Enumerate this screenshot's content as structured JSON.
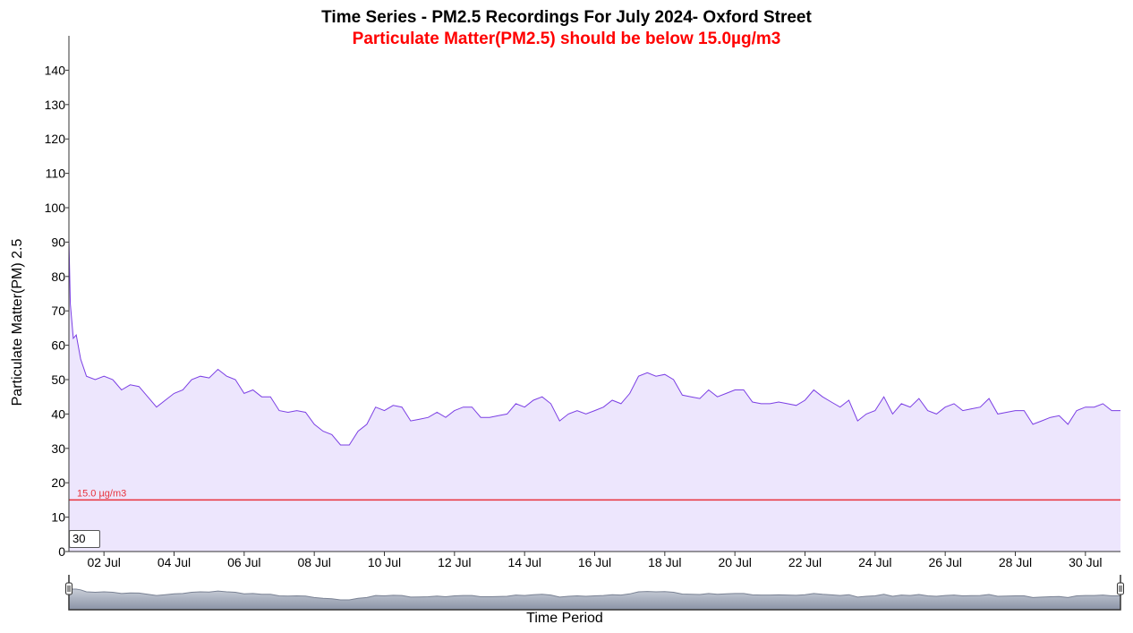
{
  "chart_data": {
    "type": "area",
    "title": "Time Series - PM2.5 Recordings For July 2024- Oxford Street",
    "subtitle": "Particulate Matter(PM2.5) should be below 15.0µg/m3",
    "xlabel": "Time Period",
    "ylabel": "Particulate Matter(PM) 2.5",
    "ylim": [
      0,
      150
    ],
    "yticks": [
      0,
      10,
      20,
      30,
      40,
      50,
      60,
      70,
      80,
      90,
      100,
      110,
      120,
      130,
      140
    ],
    "xlim": [
      "2024-07-01",
      "2024-07-31T00:00"
    ],
    "xticks": [
      "02 Jul",
      "04 Jul",
      "06 Jul",
      "08 Jul",
      "10 Jul",
      "12 Jul",
      "14 Jul",
      "16 Jul",
      "18 Jul",
      "20 Jul",
      "22 Jul",
      "24 Jul",
      "26 Jul",
      "28 Jul",
      "30 Jul"
    ],
    "xtick_dates": [
      "2024-07-02",
      "2024-07-04",
      "2024-07-06",
      "2024-07-08",
      "2024-07-10",
      "2024-07-12",
      "2024-07-14",
      "2024-07-16",
      "2024-07-18",
      "2024-07-20",
      "2024-07-22",
      "2024-07-24",
      "2024-07-26",
      "2024-07-28",
      "2024-07-30"
    ],
    "threshold": {
      "value": 15.0,
      "label": "15.0 µg/m3",
      "color": "#e8323c"
    },
    "series": [
      {
        "color": "#7b3fe4",
        "fill": "#ede6fd",
        "points": [
          [
            "2024-07-01T00:00",
            91
          ],
          [
            "2024-07-01T01:00",
            72
          ],
          [
            "2024-07-01T03:00",
            62
          ],
          [
            "2024-07-01T05:00",
            63
          ],
          [
            "2024-07-01T08:00",
            56
          ],
          [
            "2024-07-01T12:00",
            51
          ],
          [
            "2024-07-01T18:00",
            50
          ],
          [
            "2024-07-02T00:00",
            51
          ],
          [
            "2024-07-02T06:00",
            50
          ],
          [
            "2024-07-02T12:00",
            47
          ],
          [
            "2024-07-02T18:00",
            48.5
          ],
          [
            "2024-07-03T00:00",
            48
          ],
          [
            "2024-07-03T06:00",
            45
          ],
          [
            "2024-07-03T12:00",
            42
          ],
          [
            "2024-07-03T18:00",
            44
          ],
          [
            "2024-07-04T00:00",
            46
          ],
          [
            "2024-07-04T06:00",
            47
          ],
          [
            "2024-07-04T12:00",
            50
          ],
          [
            "2024-07-04T18:00",
            51
          ],
          [
            "2024-07-05T00:00",
            50.5
          ],
          [
            "2024-07-05T06:00",
            53
          ],
          [
            "2024-07-05T12:00",
            51
          ],
          [
            "2024-07-05T18:00",
            50
          ],
          [
            "2024-07-06T00:00",
            46
          ],
          [
            "2024-07-06T06:00",
            47
          ],
          [
            "2024-07-06T12:00",
            45
          ],
          [
            "2024-07-06T18:00",
            45
          ],
          [
            "2024-07-07T00:00",
            41
          ],
          [
            "2024-07-07T06:00",
            40.5
          ],
          [
            "2024-07-07T12:00",
            41
          ],
          [
            "2024-07-07T18:00",
            40.5
          ],
          [
            "2024-07-08T00:00",
            37
          ],
          [
            "2024-07-08T06:00",
            35
          ],
          [
            "2024-07-08T12:00",
            34
          ],
          [
            "2024-07-08T18:00",
            31
          ],
          [
            "2024-07-09T00:00",
            31
          ],
          [
            "2024-07-09T06:00",
            35
          ],
          [
            "2024-07-09T12:00",
            37
          ],
          [
            "2024-07-09T18:00",
            42
          ],
          [
            "2024-07-10T00:00",
            41
          ],
          [
            "2024-07-10T06:00",
            42.5
          ],
          [
            "2024-07-10T12:00",
            42
          ],
          [
            "2024-07-10T18:00",
            38
          ],
          [
            "2024-07-11T00:00",
            38.5
          ],
          [
            "2024-07-11T06:00",
            39
          ],
          [
            "2024-07-11T12:00",
            40.5
          ],
          [
            "2024-07-11T18:00",
            39
          ],
          [
            "2024-07-12T00:00",
            41
          ],
          [
            "2024-07-12T06:00",
            42
          ],
          [
            "2024-07-12T12:00",
            42
          ],
          [
            "2024-07-12T18:00",
            39
          ],
          [
            "2024-07-13T00:00",
            39
          ],
          [
            "2024-07-13T06:00",
            39.5
          ],
          [
            "2024-07-13T12:00",
            40
          ],
          [
            "2024-07-13T18:00",
            43
          ],
          [
            "2024-07-14T00:00",
            42
          ],
          [
            "2024-07-14T06:00",
            44
          ],
          [
            "2024-07-14T12:00",
            45
          ],
          [
            "2024-07-14T18:00",
            43
          ],
          [
            "2024-07-15T00:00",
            38
          ],
          [
            "2024-07-15T06:00",
            40
          ],
          [
            "2024-07-15T12:00",
            41
          ],
          [
            "2024-07-15T18:00",
            40
          ],
          [
            "2024-07-16T00:00",
            41
          ],
          [
            "2024-07-16T06:00",
            42
          ],
          [
            "2024-07-16T12:00",
            44
          ],
          [
            "2024-07-16T18:00",
            43
          ],
          [
            "2024-07-17T00:00",
            46
          ],
          [
            "2024-07-17T06:00",
            51
          ],
          [
            "2024-07-17T12:00",
            52
          ],
          [
            "2024-07-17T18:00",
            51
          ],
          [
            "2024-07-18T00:00",
            51.5
          ],
          [
            "2024-07-18T06:00",
            50
          ],
          [
            "2024-07-18T12:00",
            45.5
          ],
          [
            "2024-07-18T18:00",
            45
          ],
          [
            "2024-07-19T00:00",
            44.5
          ],
          [
            "2024-07-19T06:00",
            47
          ],
          [
            "2024-07-19T12:00",
            45
          ],
          [
            "2024-07-19T18:00",
            46
          ],
          [
            "2024-07-20T00:00",
            47
          ],
          [
            "2024-07-20T06:00",
            47
          ],
          [
            "2024-07-20T12:00",
            43.5
          ],
          [
            "2024-07-20T18:00",
            43
          ],
          [
            "2024-07-21T00:00",
            43
          ],
          [
            "2024-07-21T06:00",
            43.5
          ],
          [
            "2024-07-21T12:00",
            43
          ],
          [
            "2024-07-21T18:00",
            42.5
          ],
          [
            "2024-07-22T00:00",
            44
          ],
          [
            "2024-07-22T06:00",
            47
          ],
          [
            "2024-07-22T12:00",
            45
          ],
          [
            "2024-07-22T18:00",
            43.5
          ],
          [
            "2024-07-23T00:00",
            42
          ],
          [
            "2024-07-23T06:00",
            44
          ],
          [
            "2024-07-23T12:00",
            38
          ],
          [
            "2024-07-23T18:00",
            40
          ],
          [
            "2024-07-24T00:00",
            41
          ],
          [
            "2024-07-24T06:00",
            45
          ],
          [
            "2024-07-24T12:00",
            40
          ],
          [
            "2024-07-24T18:00",
            43
          ],
          [
            "2024-07-25T00:00",
            42
          ],
          [
            "2024-07-25T06:00",
            44.5
          ],
          [
            "2024-07-25T12:00",
            41
          ],
          [
            "2024-07-25T18:00",
            40
          ],
          [
            "2024-07-26T00:00",
            42
          ],
          [
            "2024-07-26T06:00",
            43
          ],
          [
            "2024-07-26T12:00",
            41
          ],
          [
            "2024-07-26T18:00",
            41.5
          ],
          [
            "2024-07-27T00:00",
            42
          ],
          [
            "2024-07-27T06:00",
            44.5
          ],
          [
            "2024-07-27T12:00",
            40
          ],
          [
            "2024-07-27T18:00",
            40.5
          ],
          [
            "2024-07-28T00:00",
            41
          ],
          [
            "2024-07-28T06:00",
            41
          ],
          [
            "2024-07-28T12:00",
            37
          ],
          [
            "2024-07-28T18:00",
            38
          ],
          [
            "2024-07-29T00:00",
            39
          ],
          [
            "2024-07-29T06:00",
            39.5
          ],
          [
            "2024-07-29T12:00",
            37
          ],
          [
            "2024-07-29T18:00",
            41
          ],
          [
            "2024-07-30T00:00",
            42
          ],
          [
            "2024-07-30T06:00",
            42
          ],
          [
            "2024-07-30T12:00",
            43
          ],
          [
            "2024-07-30T18:00",
            41
          ],
          [
            "2024-07-31T00:00",
            41
          ]
        ]
      }
    ],
    "navigator_range": "30",
    "grid": false
  }
}
